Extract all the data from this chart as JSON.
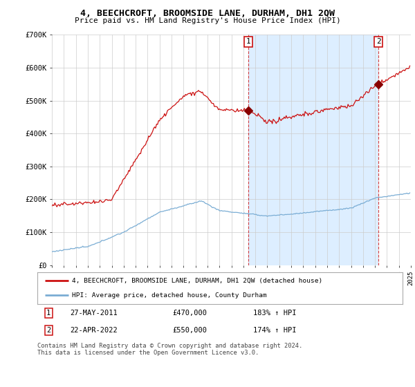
{
  "title": "4, BEECHCROFT, BROOMSIDE LANE, DURHAM, DH1 2QW",
  "subtitle": "Price paid vs. HM Land Registry's House Price Index (HPI)",
  "ylim": [
    0,
    700000
  ],
  "xlim_start": 1995,
  "xlim_end": 2025,
  "hpi_color": "#7aadd4",
  "price_color": "#cc1111",
  "transaction1_x": 2011.4,
  "transaction1_y": 470000,
  "transaction2_x": 2022.3,
  "transaction2_y": 550000,
  "shade_color": "#ddeeff",
  "legend_house_label": "4, BEECHCROFT, BROOMSIDE LANE, DURHAM, DH1 2QW (detached house)",
  "legend_hpi_label": "HPI: Average price, detached house, County Durham",
  "annotation1_date": "27-MAY-2011",
  "annotation1_price": "£470,000",
  "annotation1_hpi": "183% ↑ HPI",
  "annotation2_date": "22-APR-2022",
  "annotation2_price": "£550,000",
  "annotation2_hpi": "174% ↑ HPI",
  "footer": "Contains HM Land Registry data © Crown copyright and database right 2024.\nThis data is licensed under the Open Government Licence v3.0.",
  "background_color": "#ffffff",
  "grid_color": "#cccccc"
}
